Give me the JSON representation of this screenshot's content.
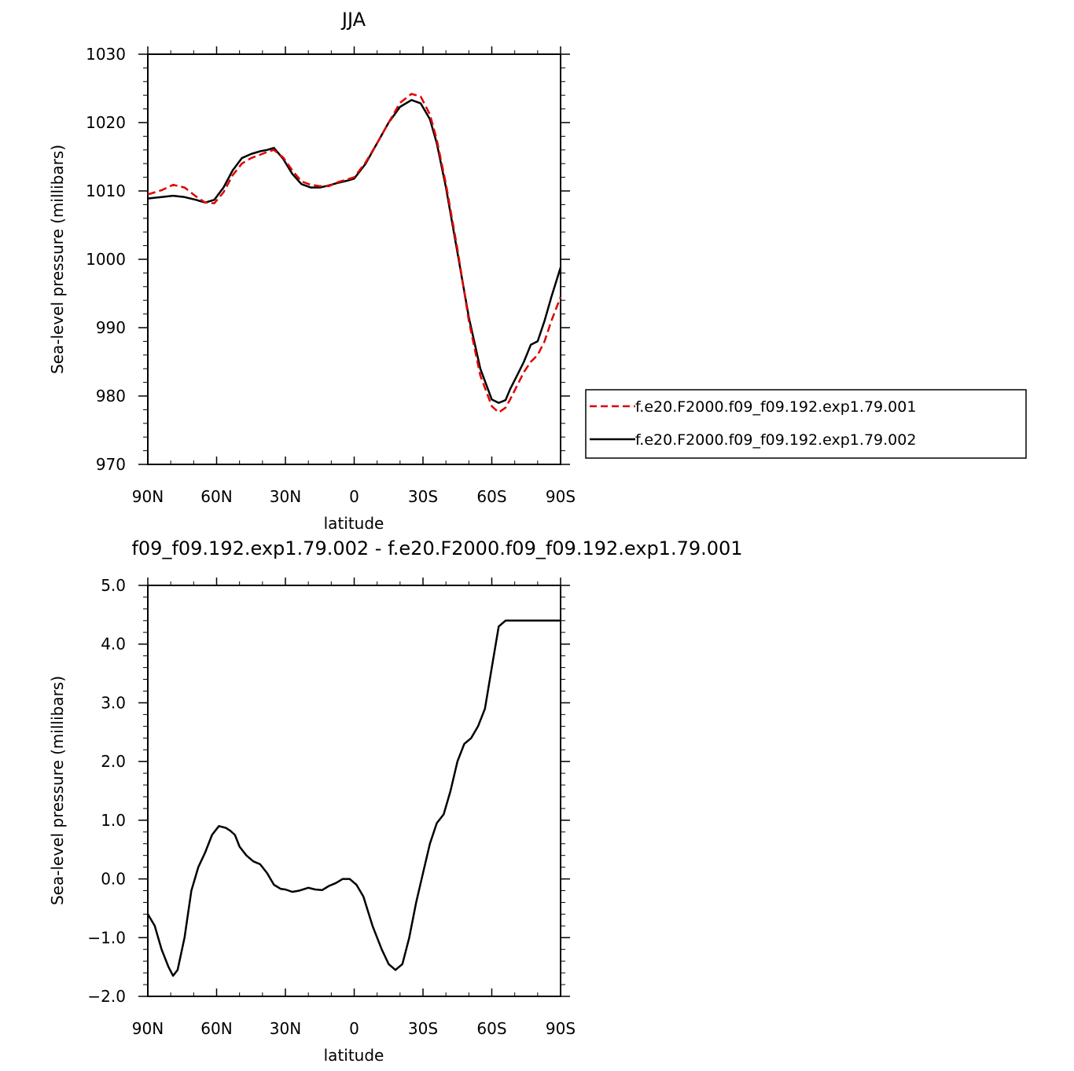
{
  "chart_data": [
    {
      "type": "line",
      "title": "JJA",
      "xlabel": "latitude",
      "ylabel": "Sea-level pressure (millibars)",
      "xlim": [
        90,
        -90
      ],
      "ylim": [
        970,
        1030
      ],
      "xticks": [
        90,
        60,
        30,
        0,
        -30,
        -60,
        -90
      ],
      "xtick_labels": [
        "90N",
        "60N",
        "30N",
        "0",
        "30S",
        "60S",
        "90S"
      ],
      "yticks": [
        970,
        980,
        990,
        1000,
        1010,
        1020,
        1030
      ],
      "ytick_labels": [
        "970",
        "980",
        "990",
        "1000",
        "1010",
        "1020",
        "1030"
      ],
      "legend_position": "right",
      "series": [
        {
          "name": "f.e20.F2000.f09_f09.192.exp1.79.001",
          "color": "#e00000",
          "dash": "dashed",
          "x": [
            90,
            84,
            79,
            74,
            69,
            65,
            61,
            57,
            53,
            49,
            45,
            41,
            38,
            35,
            31,
            27,
            23,
            19,
            15,
            11,
            7,
            3,
            0,
            -5,
            -10,
            -15,
            -20,
            -25,
            -29,
            -33,
            -36,
            -40,
            -45,
            -50,
            -55,
            -60,
            -63,
            -66,
            -68,
            -71,
            -74,
            -77,
            -80,
            -83,
            -86,
            -90
          ],
          "y": [
            1009.5,
            1010.1,
            1010.9,
            1010.5,
            1009.2,
            1008.3,
            1008.2,
            1009.8,
            1012.3,
            1014.0,
            1014.8,
            1015.3,
            1015.7,
            1016.0,
            1014.9,
            1013.0,
            1011.4,
            1010.9,
            1010.7,
            1010.7,
            1011.3,
            1011.7,
            1012.0,
            1014.2,
            1017.0,
            1020.0,
            1022.9,
            1024.2,
            1023.8,
            1021.2,
            1017.5,
            1011.0,
            1001.5,
            991.0,
            983.0,
            978.5,
            977.6,
            978.3,
            979.5,
            981.5,
            983.5,
            985.0,
            986.0,
            988.0,
            991.0,
            994.5
          ]
        },
        {
          "name": "f.e20.F2000.f09_f09.192.exp1.79.002",
          "color": "#000000",
          "dash": "solid",
          "x": [
            90,
            84,
            79,
            74,
            69,
            65,
            61,
            57,
            53,
            49,
            45,
            41,
            38,
            35,
            31,
            27,
            23,
            19,
            15,
            11,
            7,
            3,
            0,
            -5,
            -10,
            -15,
            -20,
            -25,
            -29,
            -33,
            -36,
            -40,
            -45,
            -50,
            -55,
            -60,
            -63,
            -66,
            -68,
            -71,
            -74,
            -77,
            -80,
            -83,
            -86,
            -90
          ],
          "y": [
            1008.9,
            1009.1,
            1009.3,
            1009.1,
            1008.7,
            1008.3,
            1008.7,
            1010.5,
            1013.0,
            1014.8,
            1015.4,
            1015.8,
            1016.0,
            1016.3,
            1014.7,
            1012.5,
            1011.0,
            1010.5,
            1010.5,
            1010.8,
            1011.2,
            1011.5,
            1011.8,
            1014.0,
            1017.0,
            1020.0,
            1022.3,
            1023.3,
            1022.8,
            1020.5,
            1017.0,
            1010.5,
            1001.0,
            991.5,
            984.0,
            979.5,
            979.0,
            979.4,
            981.0,
            983.0,
            985.0,
            987.5,
            988.0,
            991.0,
            994.5,
            998.8
          ]
        }
      ]
    },
    {
      "type": "line",
      "title": "f09_f09.192.exp1.79.002 - f.e20.F2000.f09_f09.192.exp1.79.001",
      "xlabel": "latitude",
      "ylabel": "Sea-level pressure (millibars)",
      "xlim": [
        90,
        -90
      ],
      "ylim": [
        -2.0,
        5.0
      ],
      "xticks": [
        90,
        60,
        30,
        0,
        -30,
        -60,
        -90
      ],
      "xtick_labels": [
        "90N",
        "60N",
        "30N",
        "0",
        "30S",
        "60S",
        "90S"
      ],
      "yticks": [
        -2.0,
        -1.0,
        0.0,
        1.0,
        2.0,
        3.0,
        4.0,
        5.0
      ],
      "ytick_labels": [
        "−2.0",
        "−1.0",
        "0.0",
        "1.0",
        "2.0",
        "3.0",
        "4.0",
        "5.0"
      ],
      "series": [
        {
          "color": "#000000",
          "dash": "solid",
          "x": [
            90,
            87,
            84,
            81,
            79,
            77,
            74,
            71,
            68,
            65,
            62,
            59,
            56,
            54,
            52,
            50,
            47,
            44,
            41,
            38,
            35,
            32,
            30,
            27,
            24,
            20,
            17,
            14,
            11,
            8,
            5,
            2,
            -1,
            -4,
            -8,
            -12,
            -15,
            -18,
            -21,
            -24,
            -27,
            -30,
            -33,
            -36,
            -39,
            -42,
            -45,
            -48,
            -51,
            -54,
            -57,
            -60,
            -63,
            -66,
            -68,
            -70,
            -72,
            -74,
            -76,
            -78,
            -80,
            -82,
            -84,
            -86,
            -88,
            -90
          ],
          "y": [
            -0.6,
            -0.8,
            -1.2,
            -1.5,
            -1.65,
            -1.55,
            -1.0,
            -0.2,
            0.2,
            0.45,
            0.75,
            0.9,
            0.87,
            0.82,
            0.75,
            0.55,
            0.4,
            0.3,
            0.25,
            0.1,
            -0.1,
            -0.17,
            -0.18,
            -0.22,
            -0.2,
            -0.15,
            -0.18,
            -0.19,
            -0.12,
            -0.07,
            0.0,
            0.0,
            -0.1,
            -0.3,
            -0.8,
            -1.2,
            -1.45,
            -1.55,
            -1.45,
            -1.0,
            -0.4,
            0.1,
            0.6,
            0.95,
            1.1,
            1.5,
            2.0,
            2.3,
            2.4,
            2.6,
            2.9,
            3.6,
            4.3,
            4.4,
            4.4,
            4.4,
            4.4,
            4.4,
            4.4,
            4.4,
            4.4,
            4.4,
            4.4,
            4.4,
            4.4,
            4.4
          ]
        }
      ]
    }
  ]
}
